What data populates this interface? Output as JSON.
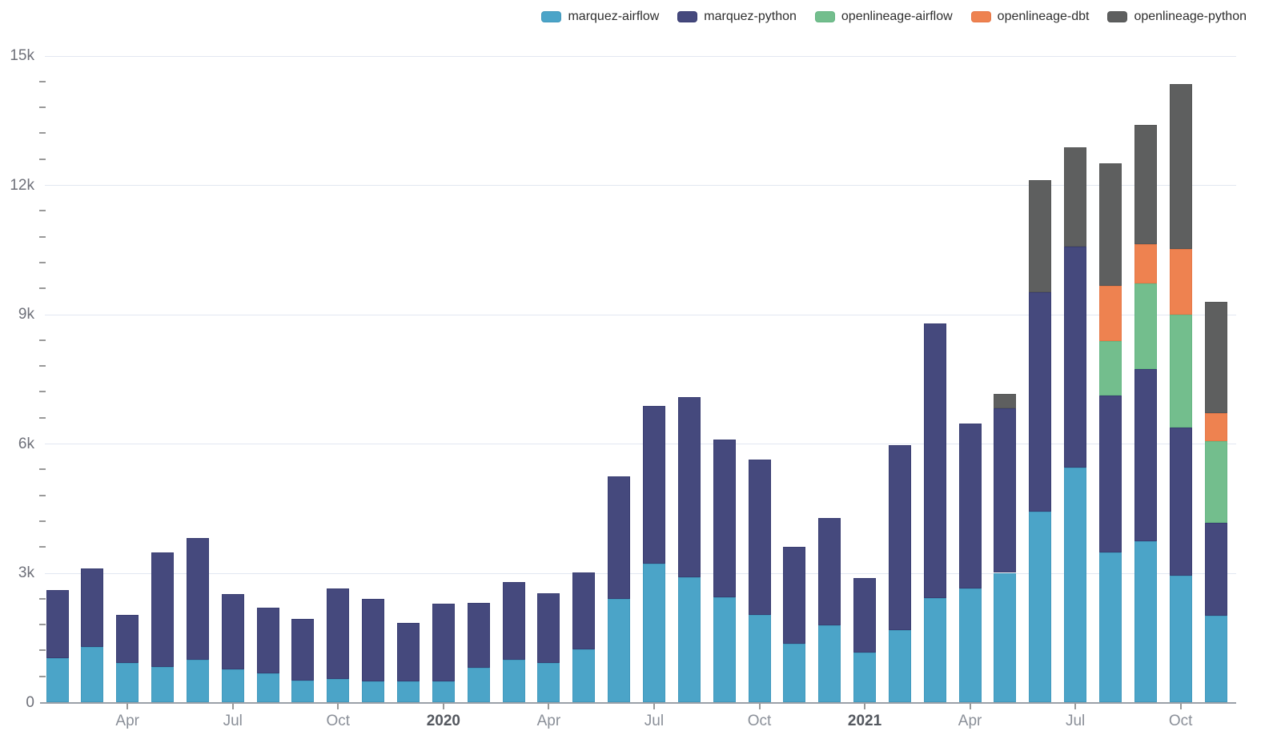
{
  "legend": {
    "items": [
      {
        "label": "marquez-airflow",
        "color": "#4BA4C8",
        "stroke": "#2F84A8"
      },
      {
        "label": "marquez-python",
        "color": "#45497D",
        "stroke": "#23295E"
      },
      {
        "label": "openlineage-airflow",
        "color": "#73BE8D",
        "stroke": "#4FA873"
      },
      {
        "label": "openlineage-dbt",
        "color": "#EE8250",
        "stroke": "#D96536"
      },
      {
        "label": "openlineage-python",
        "color": "#5E5F5F",
        "stroke": "#454545"
      }
    ]
  },
  "chart_data": {
    "type": "bar",
    "stacked": true,
    "title": "",
    "xlabel": "",
    "ylabel": "",
    "ylim": [
      0,
      15000
    ],
    "grid": true,
    "legend_position": "top-right",
    "categories": [
      "Feb 2019",
      "Mar 2019",
      "Apr 2019",
      "May 2019",
      "Jun 2019",
      "Jul 2019",
      "Aug 2019",
      "Sep 2019",
      "Oct 2019",
      "Nov 2019",
      "Dec 2019",
      "Jan 2020",
      "Feb 2020",
      "Mar 2020",
      "Apr 2020",
      "May 2020",
      "Jun 2020",
      "Jul 2020",
      "Aug 2020",
      "Sep 2020",
      "Oct 2020",
      "Nov 2020",
      "Dec 2020",
      "Jan 2021",
      "Feb 2021",
      "Mar 2021",
      "Apr 2021",
      "May 2021",
      "Jun 2021",
      "Jul 2021",
      "Aug 2021",
      "Sep 2021",
      "Oct 2021",
      "Nov 2021"
    ],
    "series": [
      {
        "name": "marquez-airflow",
        "values": [
          1020,
          1290,
          910,
          820,
          990,
          760,
          660,
          510,
          540,
          480,
          490,
          490,
          790,
          980,
          910,
          1220,
          2400,
          3220,
          2890,
          2430,
          2020,
          1360,
          1780,
          1150,
          1680,
          2420,
          2630,
          3000,
          4430,
          5440,
          3480,
          3730,
          2930,
          2000
        ]
      },
      {
        "name": "marquez-python",
        "values": [
          1580,
          1820,
          1120,
          2650,
          2810,
          1740,
          1540,
          1420,
          2090,
          1920,
          1340,
          1790,
          1520,
          1810,
          1620,
          1790,
          2830,
          3660,
          4190,
          3660,
          3610,
          2240,
          2490,
          1720,
          4290,
          6370,
          3840,
          3810,
          5090,
          5130,
          3640,
          4000,
          3450,
          2160
        ]
      },
      {
        "name": "openlineage-airflow",
        "values": [
          0,
          0,
          0,
          0,
          0,
          0,
          0,
          0,
          0,
          0,
          0,
          0,
          0,
          0,
          0,
          0,
          0,
          0,
          0,
          0,
          0,
          0,
          0,
          0,
          0,
          0,
          0,
          0,
          0,
          0,
          1250,
          1990,
          2610,
          1890
        ]
      },
      {
        "name": "openlineage-dbt",
        "values": [
          0,
          0,
          0,
          0,
          0,
          0,
          0,
          0,
          0,
          0,
          0,
          0,
          0,
          0,
          0,
          0,
          0,
          0,
          0,
          0,
          0,
          0,
          0,
          0,
          0,
          0,
          0,
          0,
          0,
          0,
          1290,
          910,
          1520,
          660
        ]
      },
      {
        "name": "openlineage-python",
        "values": [
          0,
          0,
          0,
          0,
          0,
          0,
          0,
          0,
          0,
          0,
          0,
          0,
          0,
          0,
          0,
          0,
          0,
          0,
          0,
          0,
          0,
          0,
          0,
          0,
          0,
          0,
          0,
          340,
          2590,
          2310,
          2840,
          2760,
          3830,
          2570
        ]
      }
    ],
    "y_axis": {
      "major_ticks": [
        {
          "value": 0,
          "label": "0"
        },
        {
          "value": 3000,
          "label": "3k"
        },
        {
          "value": 6000,
          "label": "6k"
        },
        {
          "value": 9000,
          "label": "9k"
        },
        {
          "value": 12000,
          "label": "12k"
        },
        {
          "value": 15000,
          "label": "15k"
        }
      ],
      "minor_tick_step": 600
    },
    "x_axis": {
      "ticks": [
        {
          "index": 2,
          "label": "Apr",
          "year": false
        },
        {
          "index": 5,
          "label": "Jul",
          "year": false
        },
        {
          "index": 8,
          "label": "Oct",
          "year": false
        },
        {
          "index": 11,
          "label": "2020",
          "year": true
        },
        {
          "index": 14,
          "label": "Apr",
          "year": false
        },
        {
          "index": 17,
          "label": "Jul",
          "year": false
        },
        {
          "index": 20,
          "label": "Oct",
          "year": false
        },
        {
          "index": 23,
          "label": "2021",
          "year": true
        },
        {
          "index": 26,
          "label": "Apr",
          "year": false
        },
        {
          "index": 29,
          "label": "Jul",
          "year": false
        },
        {
          "index": 32,
          "label": "Oct",
          "year": false
        }
      ]
    }
  }
}
